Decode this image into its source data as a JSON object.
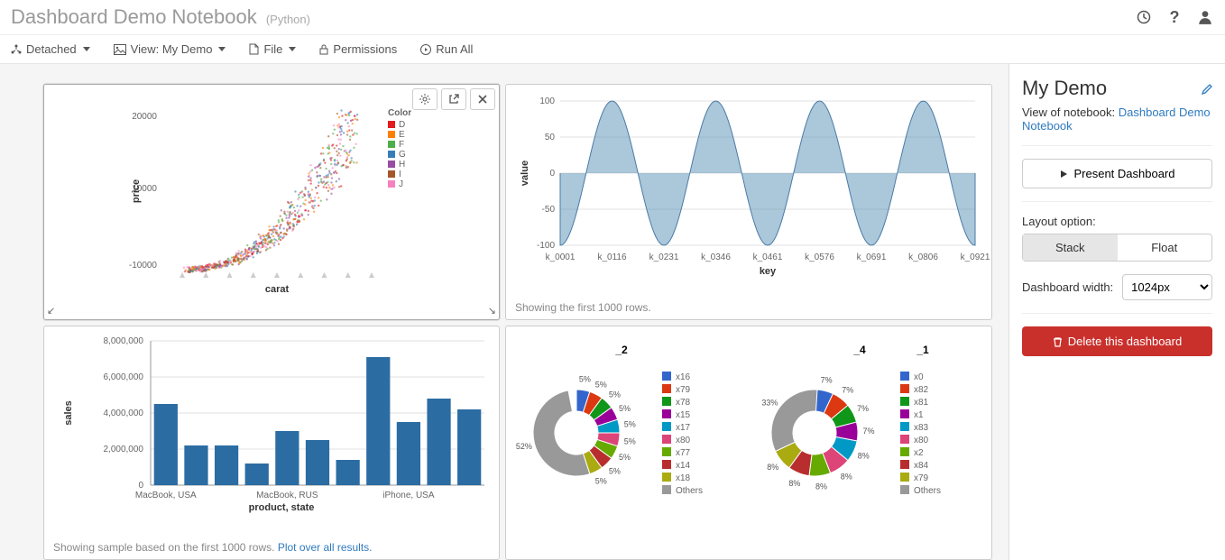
{
  "header": {
    "title": "Dashboard Demo Notebook",
    "language": "(Python)"
  },
  "toolbar": {
    "detached": "Detached",
    "view": "View: My Demo",
    "file": "File",
    "permissions": "Permissions",
    "run_all": "Run All"
  },
  "sidebar": {
    "title": "My Demo",
    "view_of_label": "View of notebook:",
    "notebook_link": "Dashboard Demo Notebook",
    "present_btn": "Present Dashboard",
    "layout_label": "Layout option:",
    "layout_stack": "Stack",
    "layout_float": "Float",
    "width_label": "Dashboard width:",
    "width_value": "1024px",
    "delete_btn": "Delete this dashboard"
  },
  "scatter": {
    "xlabel": "carat",
    "ylabel": "price",
    "legend_title": "Color",
    "legend_items": [
      "D",
      "E",
      "F",
      "G",
      "H",
      "I",
      "J"
    ],
    "legend_colors": [
      "#e41a1c",
      "#ff7f00",
      "#4daf4a",
      "#377eb8",
      "#984ea3",
      "#a65628",
      "#f781bf"
    ]
  },
  "sine": {
    "ylabel": "value",
    "xlabel": "key",
    "ylim": [
      -100,
      100
    ],
    "ytick_step": 50,
    "xlabels": [
      "k_0001",
      "k_0116",
      "k_0231",
      "k_0346",
      "k_0461",
      "k_0576",
      "k_0691",
      "k_0806",
      "k_0921"
    ],
    "caption": "Showing the first 1000 rows.",
    "area_color": "#6699bb",
    "line_color": "#4a7ba6"
  },
  "bar": {
    "ylabel": "sales",
    "xlabel": "product, state",
    "ylim": [
      0,
      8000000
    ],
    "ytick_step": 2000000,
    "yticklabels": [
      "0",
      "2,000,000",
      "4,000,000",
      "6,000,000",
      "8,000,000"
    ],
    "xticklabels": [
      "MacBook, USA",
      "MacBook, RUS",
      "iPhone, USA"
    ],
    "values": [
      4500000,
      2200000,
      2200000,
      1200000,
      3000000,
      2500000,
      1400000,
      7100000,
      3500000,
      4800000,
      4200000
    ],
    "bar_color": "#2b6ca3",
    "caption_prefix": "Showing sample based on the first 1000 rows. ",
    "caption_link": "Plot over all results."
  },
  "donut1": {
    "title": "_2",
    "slices": [
      {
        "label": "x16",
        "pct": 5,
        "color": "#3366cc"
      },
      {
        "label": "x79",
        "pct": 5,
        "color": "#dc3912"
      },
      {
        "label": "x78",
        "pct": 5,
        "color": "#109618"
      },
      {
        "label": "x15",
        "pct": 5,
        "color": "#990099"
      },
      {
        "label": "x17",
        "pct": 5,
        "color": "#0099c6"
      },
      {
        "label": "x80",
        "pct": 5,
        "color": "#dd4477"
      },
      {
        "label": "x77",
        "pct": 5,
        "color": "#66aa00"
      },
      {
        "label": "x14",
        "pct": 5,
        "color": "#b82e2e"
      },
      {
        "label": "x18",
        "pct": 5,
        "color": "#aaaa11"
      },
      {
        "label": "Others",
        "pct": 52,
        "color": "#999999"
      }
    ]
  },
  "donut2": {
    "titles": [
      "_4",
      "_1"
    ],
    "slices": [
      {
        "label": "x0",
        "pct": 7,
        "color": "#3366cc"
      },
      {
        "label": "x82",
        "pct": 7,
        "color": "#dc3912"
      },
      {
        "label": "x81",
        "pct": 7,
        "color": "#109618"
      },
      {
        "label": "x1",
        "pct": 7,
        "color": "#990099"
      },
      {
        "label": "x83",
        "pct": 8,
        "color": "#0099c6"
      },
      {
        "label": "x80",
        "pct": 8,
        "color": "#dd4477"
      },
      {
        "label": "x2",
        "pct": 8,
        "color": "#66aa00"
      },
      {
        "label": "x84",
        "pct": 8,
        "color": "#b82e2e"
      },
      {
        "label": "x79",
        "pct": 8,
        "color": "#aaaa11"
      },
      {
        "label": "Others",
        "pct": 33,
        "color": "#999999"
      }
    ]
  }
}
